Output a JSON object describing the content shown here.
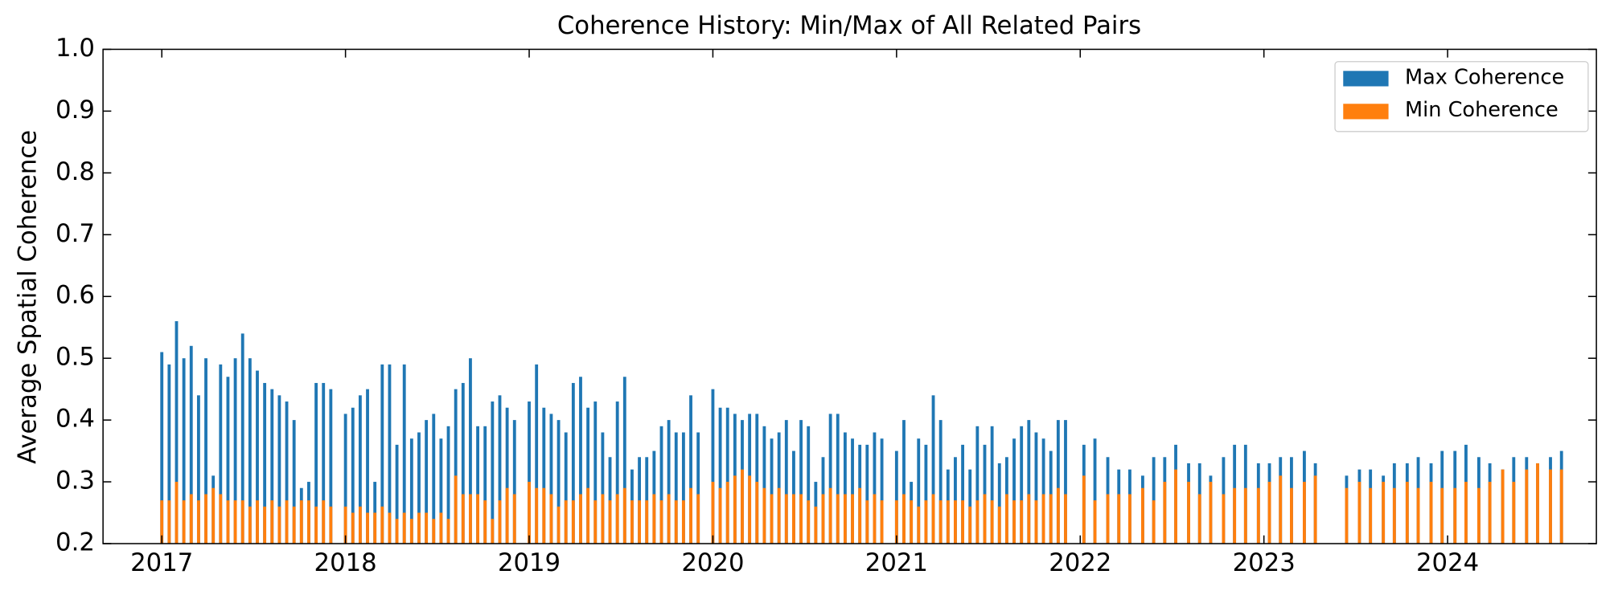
{
  "chart_data": {
    "type": "bar",
    "title": "Coherence History: Min/Max of All Related Pairs",
    "y_label": "Average Spatial Coherence",
    "x": [
      2017.0,
      2017.04,
      2017.08,
      2017.12,
      2017.16,
      2017.2,
      2017.24,
      2017.28,
      2017.32,
      2017.36,
      2017.4,
      2017.44,
      2017.48,
      2017.52,
      2017.56,
      2017.6,
      2017.64,
      2017.68,
      2017.72,
      2017.76,
      2017.8,
      2017.84,
      2017.88,
      2017.92,
      2018.0,
      2018.04,
      2018.08,
      2018.12,
      2018.16,
      2018.2,
      2018.24,
      2018.28,
      2018.32,
      2018.36,
      2018.4,
      2018.44,
      2018.48,
      2018.52,
      2018.56,
      2018.6,
      2018.64,
      2018.68,
      2018.72,
      2018.76,
      2018.8,
      2018.84,
      2018.88,
      2018.92,
      2019.0,
      2019.04,
      2019.08,
      2019.12,
      2019.16,
      2019.2,
      2019.24,
      2019.28,
      2019.32,
      2019.36,
      2019.4,
      2019.44,
      2019.48,
      2019.52,
      2019.56,
      2019.6,
      2019.64,
      2019.68,
      2019.72,
      2019.76,
      2019.8,
      2019.84,
      2019.88,
      2019.92,
      2020.0,
      2020.04,
      2020.08,
      2020.12,
      2020.16,
      2020.2,
      2020.24,
      2020.28,
      2020.32,
      2020.36,
      2020.4,
      2020.44,
      2020.48,
      2020.52,
      2020.56,
      2020.6,
      2020.64,
      2020.68,
      2020.72,
      2020.76,
      2020.8,
      2020.84,
      2020.88,
      2020.92,
      2021.0,
      2021.04,
      2021.08,
      2021.12,
      2021.16,
      2021.2,
      2021.24,
      2021.28,
      2021.32,
      2021.36,
      2021.4,
      2021.44,
      2021.48,
      2021.52,
      2021.56,
      2021.6,
      2021.64,
      2021.68,
      2021.72,
      2021.76,
      2021.8,
      2021.84,
      2021.88,
      2021.92,
      2022.02,
      2022.08,
      2022.15,
      2022.21,
      2022.27,
      2022.34,
      2022.4,
      2022.46,
      2022.52,
      2022.59,
      2022.65,
      2022.71,
      2022.78,
      2022.84,
      2022.9,
      2022.97,
      2023.03,
      2023.09,
      2023.15,
      2023.22,
      2023.28,
      2023.45,
      2023.52,
      2023.58,
      2023.65,
      2023.71,
      2023.78,
      2023.84,
      2023.91,
      2023.97,
      2024.04,
      2024.1,
      2024.17,
      2024.23,
      2024.3,
      2024.36,
      2024.43,
      2024.49,
      2024.56,
      2024.62
    ],
    "series": [
      {
        "name": "Max Coherence",
        "color": "#1f77b4",
        "values": [
          0.51,
          0.49,
          0.56,
          0.5,
          0.52,
          0.44,
          0.5,
          0.31,
          0.49,
          0.47,
          0.5,
          0.54,
          0.5,
          0.48,
          0.46,
          0.45,
          0.44,
          0.43,
          0.4,
          0.29,
          0.3,
          0.46,
          0.46,
          0.45,
          0.41,
          0.42,
          0.44,
          0.45,
          0.3,
          0.49,
          0.49,
          0.36,
          0.49,
          0.37,
          0.38,
          0.4,
          0.41,
          0.37,
          0.39,
          0.45,
          0.46,
          0.5,
          0.39,
          0.39,
          0.43,
          0.44,
          0.42,
          0.4,
          0.43,
          0.49,
          0.42,
          0.41,
          0.4,
          0.38,
          0.46,
          0.47,
          0.42,
          0.43,
          0.38,
          0.34,
          0.43,
          0.47,
          0.32,
          0.34,
          0.34,
          0.35,
          0.39,
          0.4,
          0.38,
          0.38,
          0.44,
          0.38,
          0.45,
          0.42,
          0.42,
          0.41,
          0.4,
          0.41,
          0.41,
          0.39,
          0.37,
          0.38,
          0.4,
          0.35,
          0.4,
          0.39,
          0.3,
          0.34,
          0.41,
          0.41,
          0.38,
          0.37,
          0.36,
          0.36,
          0.38,
          0.37,
          0.35,
          0.4,
          0.3,
          0.37,
          0.36,
          0.44,
          0.4,
          0.32,
          0.34,
          0.36,
          0.32,
          0.39,
          0.36,
          0.39,
          0.33,
          0.34,
          0.37,
          0.39,
          0.4,
          0.38,
          0.37,
          0.35,
          0.4,
          0.4,
          0.36,
          0.37,
          0.34,
          0.32,
          0.32,
          0.31,
          0.34,
          0.34,
          0.36,
          0.33,
          0.33,
          0.31,
          0.34,
          0.36,
          0.36,
          0.33,
          0.33,
          0.34,
          0.34,
          0.35,
          0.33,
          0.31,
          0.32,
          0.32,
          0.31,
          0.33,
          0.33,
          0.34,
          0.33,
          0.35,
          0.35,
          0.36,
          0.34,
          0.33,
          0.32,
          0.34,
          0.34,
          0.33,
          0.34,
          0.35
        ]
      },
      {
        "name": "Min Coherence",
        "color": "#ff7f0e",
        "values": [
          0.27,
          0.27,
          0.3,
          0.27,
          0.28,
          0.27,
          0.28,
          0.29,
          0.28,
          0.27,
          0.27,
          0.27,
          0.26,
          0.27,
          0.26,
          0.27,
          0.26,
          0.27,
          0.26,
          0.27,
          0.27,
          0.26,
          0.27,
          0.26,
          0.26,
          0.25,
          0.26,
          0.25,
          0.25,
          0.26,
          0.25,
          0.24,
          0.25,
          0.24,
          0.25,
          0.25,
          0.24,
          0.25,
          0.24,
          0.31,
          0.28,
          0.28,
          0.28,
          0.27,
          0.24,
          0.27,
          0.29,
          0.28,
          0.3,
          0.29,
          0.29,
          0.28,
          0.26,
          0.27,
          0.27,
          0.28,
          0.29,
          0.27,
          0.28,
          0.27,
          0.28,
          0.29,
          0.27,
          0.27,
          0.27,
          0.28,
          0.27,
          0.28,
          0.27,
          0.27,
          0.29,
          0.28,
          0.3,
          0.29,
          0.3,
          0.31,
          0.32,
          0.31,
          0.3,
          0.29,
          0.28,
          0.29,
          0.28,
          0.28,
          0.28,
          0.27,
          0.26,
          0.28,
          0.29,
          0.28,
          0.28,
          0.28,
          0.29,
          0.27,
          0.28,
          0.27,
          0.27,
          0.28,
          0.27,
          0.26,
          0.27,
          0.28,
          0.27,
          0.27,
          0.27,
          0.27,
          0.26,
          0.27,
          0.28,
          0.27,
          0.26,
          0.28,
          0.27,
          0.27,
          0.28,
          0.27,
          0.28,
          0.28,
          0.29,
          0.28,
          0.31,
          0.27,
          0.28,
          0.28,
          0.28,
          0.29,
          0.27,
          0.3,
          0.32,
          0.3,
          0.28,
          0.3,
          0.28,
          0.29,
          0.29,
          0.29,
          0.3,
          0.31,
          0.29,
          0.3,
          0.31,
          0.29,
          0.3,
          0.29,
          0.3,
          0.29,
          0.3,
          0.29,
          0.3,
          0.29,
          0.29,
          0.3,
          0.29,
          0.3,
          0.32,
          0.3,
          0.32,
          0.33,
          0.32,
          0.32
        ]
      }
    ],
    "xlim": [
      2016.68,
      2024.81
    ],
    "xticks": [
      2017,
      2018,
      2019,
      2020,
      2021,
      2022,
      2023,
      2024
    ],
    "ylim": [
      0.2,
      1.0
    ],
    "yticks": [
      0.2,
      0.3,
      0.4,
      0.5,
      0.6,
      0.7,
      0.8,
      0.9,
      {
        "value": 1.0,
        "label": "1.0"
      }
    ],
    "legend": "upper right"
  }
}
